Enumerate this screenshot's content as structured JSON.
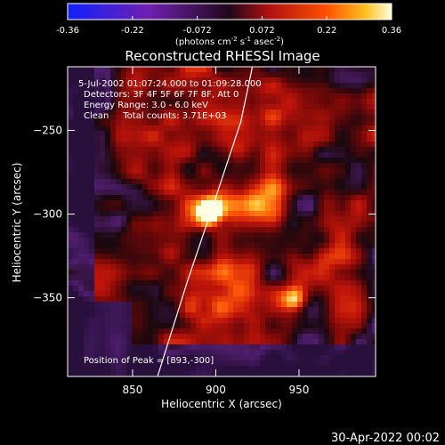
{
  "chart_data": {
    "type": "heatmap",
    "title": "Reconstructed RHESSI Image",
    "xlabel": "Heliocentric X (arcsec)",
    "ylabel": "Heliocentric Y (arcsec)",
    "xlim": [
      811,
      996
    ],
    "ylim": [
      -397,
      -212
    ],
    "xticks": [
      850,
      900,
      950
    ],
    "yticks": [
      -350,
      -300,
      -250
    ],
    "colorbar": {
      "min": -0.36,
      "max": 0.36,
      "ticks": [
        "-0.36",
        "-0.22",
        "-0.072",
        "0.072",
        "0.22",
        "0.36"
      ],
      "unit_prefix": "(photons cm",
      "unit_exp1": "-2",
      "unit_mid": " s",
      "unit_exp2": "-1",
      "unit_mid2": " asec",
      "unit_exp3": "-2",
      "unit_suffix": ")"
    },
    "annotations": [
      "5-Jul-2002 01:07:24.000 to 01:09:28.000",
      "Detectors: 3F 4F 5F 6F 7F 8F, Att 0",
      "Energy Range: 3.0 - 6.0 keV",
      "Clean     Total counts: 3.71E+03"
    ],
    "peak_label": "Position of Peak = [893,-300]",
    "peak": [
      893,
      -300
    ],
    "sources": [
      {
        "x": 896,
        "y": -298,
        "intensity": 0.36
      },
      {
        "x": 947,
        "y": -351,
        "intensity": 0.28
      }
    ],
    "limb_curve": [
      [
        865,
        -397
      ],
      [
        883,
        -340
      ],
      [
        900,
        -290
      ],
      [
        915,
        -245
      ],
      [
        922,
        -212
      ]
    ]
  },
  "footer": {
    "date": "30-Apr-2022 00:02"
  }
}
